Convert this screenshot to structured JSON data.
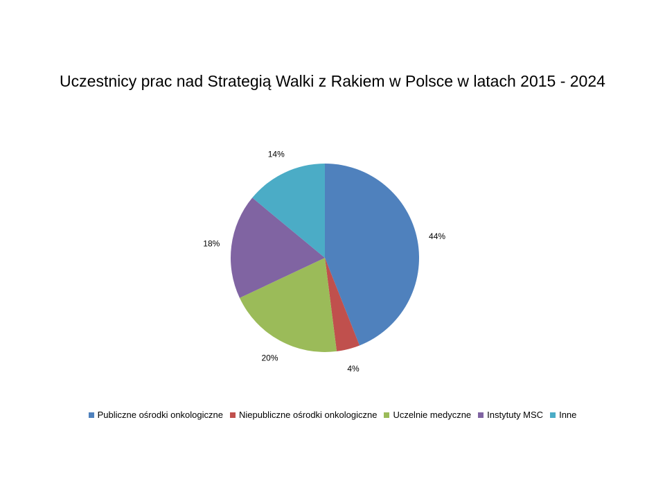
{
  "chart_data": {
    "type": "pie",
    "title": "Uczestnicy prac nad Strategią Walki z Rakiem w Polsce w latach 2015 - 2024",
    "categories": [
      "Publiczne ośrodki onkologiczne",
      "Niepubliczne ośrodki onkologiczne",
      "Uczelnie medyczne",
      "Instytuty MSC",
      "Inne"
    ],
    "values": [
      44,
      4,
      20,
      18,
      14
    ],
    "labels": [
      "44%",
      "4%",
      "20%",
      "18%",
      "14%"
    ],
    "colors": [
      "#4F81BD",
      "#C0504D",
      "#9BBB59",
      "#8064A2",
      "#4BACC6"
    ],
    "legend_position": "bottom"
  }
}
